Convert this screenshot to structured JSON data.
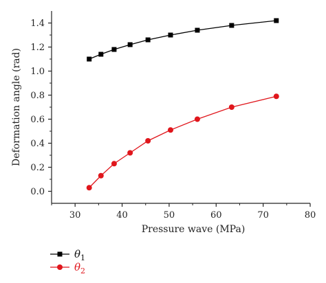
{
  "chart_data": {
    "type": "line",
    "xlabel": "Pressure wave (MPa)",
    "ylabel": "Deformation angle (rad)",
    "xlim": [
      25,
      80
    ],
    "ylim": [
      -0.1,
      1.5
    ],
    "xticks": [
      30,
      40,
      50,
      60,
      70,
      80
    ],
    "yticks": [
      0.0,
      0.2,
      0.4,
      0.6,
      0.8,
      1.0,
      1.2,
      1.4
    ],
    "xtick_labels": [
      "30",
      "40",
      "50",
      "60",
      "70",
      "80"
    ],
    "ytick_labels": [
      "0.0",
      "0.2",
      "0.4",
      "0.6",
      "0.8",
      "1.0",
      "1.2",
      "1.4"
    ],
    "grid": false,
    "legend_position": "bottom-left",
    "series": [
      {
        "name": "θ",
        "name_subscript": "1",
        "color": "#000000",
        "marker": "square",
        "x": [
          33.0,
          35.5,
          38.3,
          41.7,
          45.5,
          50.3,
          56.0,
          63.3,
          72.8
        ],
        "y": [
          1.1,
          1.14,
          1.18,
          1.22,
          1.26,
          1.3,
          1.34,
          1.38,
          1.42
        ]
      },
      {
        "name": "θ",
        "name_subscript": "2",
        "color": "#e0161c",
        "marker": "circle",
        "x": [
          33.0,
          35.5,
          38.3,
          41.7,
          45.5,
          50.3,
          56.0,
          63.3,
          72.8
        ],
        "y": [
          0.03,
          0.13,
          0.23,
          0.32,
          0.42,
          0.51,
          0.6,
          0.7,
          0.79
        ]
      }
    ]
  }
}
